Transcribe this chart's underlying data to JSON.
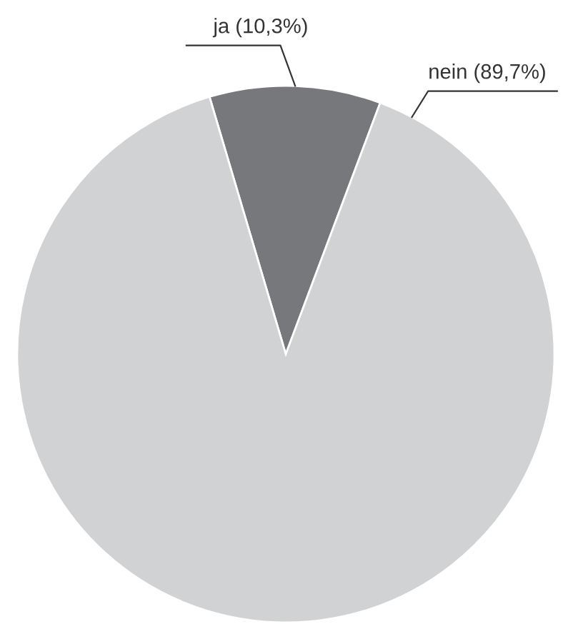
{
  "chart_data": {
    "type": "pie",
    "categories": [
      "ja",
      "nein"
    ],
    "values": [
      10.3,
      89.7
    ],
    "value_labels": [
      "(10,3%)",
      "(89,7%)"
    ],
    "colors": [
      "#77787b",
      "#d1d2d4"
    ],
    "legend": false
  }
}
